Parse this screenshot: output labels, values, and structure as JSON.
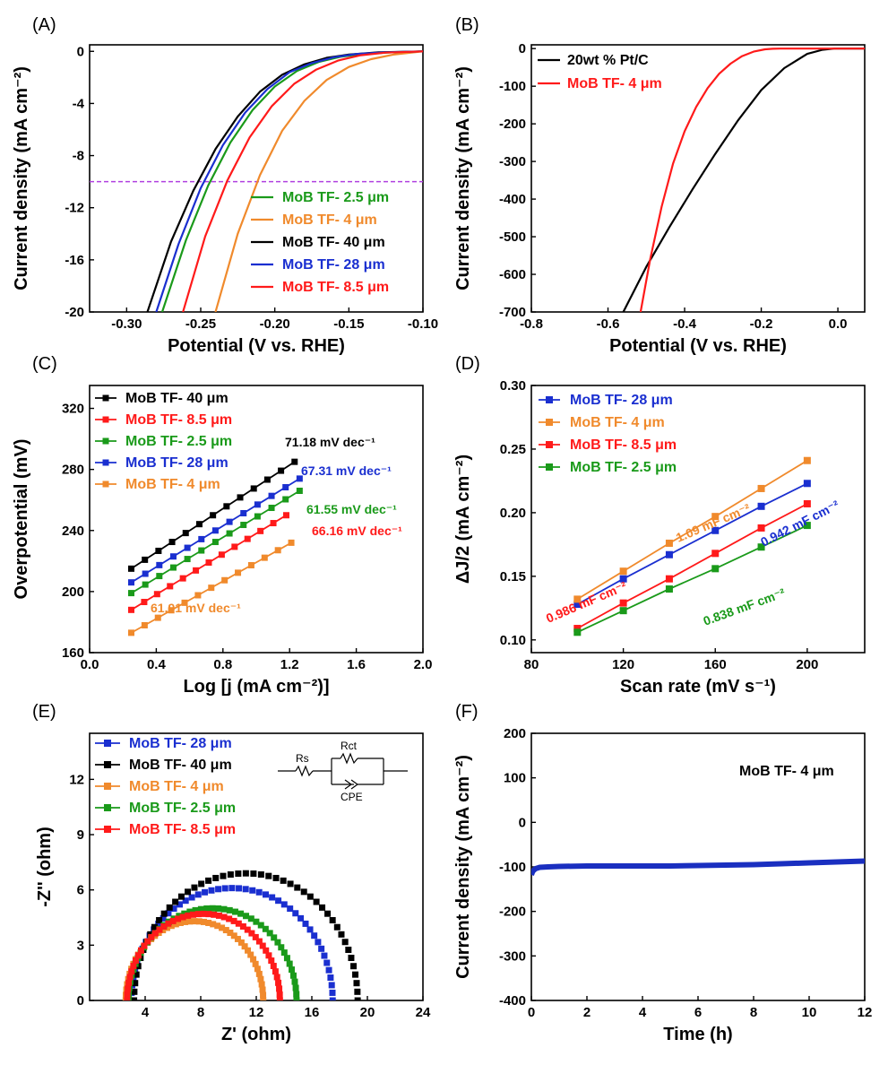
{
  "colors": {
    "black": "#000000",
    "red": "#ff1a1a",
    "green": "#1a9a1a",
    "blue": "#1a2fd0",
    "orange": "#f08a2c",
    "magenta": "#b040e0",
    "stability_blue": "#1a2fc0"
  },
  "chart_data": [
    {
      "id": "A",
      "panel_label": "(A)",
      "type": "line",
      "xlabel": "Potential (V vs. RHE)",
      "ylabel": "Current density (mA cm⁻²)",
      "xlim": [
        -0.325,
        -0.1
      ],
      "ylim": [
        -20,
        0.5
      ],
      "xticks": [
        -0.3,
        -0.25,
        -0.2,
        -0.15,
        -0.1
      ],
      "xtick_labels": [
        "-0.30",
        "-0.25",
        "-0.20",
        "-0.15",
        "-0.10"
      ],
      "yticks": [
        -20,
        -16,
        -12,
        -8,
        -4,
        0
      ],
      "ytick_labels": [
        "-20",
        "-16",
        "-12",
        "-8",
        "-4",
        "0"
      ],
      "reference_line": {
        "y": -10,
        "color": "magenta",
        "style": "dashed"
      },
      "legend_position": "bottom-right",
      "series": [
        {
          "name": "MoB TF- 2.5 μm",
          "color": "green",
          "x": [
            -0.276,
            -0.26,
            -0.245,
            -0.23,
            -0.215,
            -0.2,
            -0.185,
            -0.17,
            -0.155,
            -0.14,
            -0.12,
            -0.1
          ],
          "y": [
            -20,
            -14.5,
            -10.3,
            -7.0,
            -4.5,
            -2.7,
            -1.5,
            -0.8,
            -0.4,
            -0.2,
            -0.07,
            0
          ]
        },
        {
          "name": "MoB TF- 4 μm",
          "color": "orange",
          "x": [
            -0.24,
            -0.225,
            -0.21,
            -0.195,
            -0.18,
            -0.165,
            -0.15,
            -0.135,
            -0.12,
            -0.1
          ],
          "y": [
            -20,
            -14.0,
            -9.5,
            -6.1,
            -3.8,
            -2.2,
            -1.2,
            -0.6,
            -0.25,
            0
          ]
        },
        {
          "name": "MoB TF- 40 μm",
          "color": "black",
          "x": [
            -0.286,
            -0.27,
            -0.255,
            -0.24,
            -0.225,
            -0.21,
            -0.195,
            -0.18,
            -0.165,
            -0.15,
            -0.13,
            -0.1
          ],
          "y": [
            -20,
            -14.6,
            -10.7,
            -7.5,
            -5.0,
            -3.1,
            -1.8,
            -1.0,
            -0.5,
            -0.25,
            -0.08,
            0
          ]
        },
        {
          "name": "MoB TF- 28 μm",
          "color": "blue",
          "x": [
            -0.28,
            -0.265,
            -0.25,
            -0.235,
            -0.22,
            -0.205,
            -0.19,
            -0.175,
            -0.16,
            -0.145,
            -0.125,
            -0.1
          ],
          "y": [
            -20,
            -14.8,
            -10.5,
            -7.2,
            -4.7,
            -2.9,
            -1.6,
            -0.9,
            -0.45,
            -0.2,
            -0.07,
            0
          ]
        },
        {
          "name": "MoB TF- 8.5 μm",
          "color": "red",
          "x": [
            -0.262,
            -0.247,
            -0.232,
            -0.217,
            -0.202,
            -0.187,
            -0.172,
            -0.157,
            -0.142,
            -0.125,
            -0.1
          ],
          "y": [
            -20,
            -14.2,
            -9.9,
            -6.6,
            -4.2,
            -2.5,
            -1.4,
            -0.7,
            -0.3,
            -0.1,
            0
          ]
        }
      ]
    },
    {
      "id": "B",
      "panel_label": "(B)",
      "type": "line",
      "xlabel": "Potential (V vs. RHE)",
      "ylabel": "Current density (mA cm⁻²)",
      "xlim": [
        -0.8,
        0.07
      ],
      "ylim": [
        -700,
        10
      ],
      "xticks": [
        -0.8,
        -0.6,
        -0.4,
        -0.2,
        0.0
      ],
      "xtick_labels": [
        "-0.8",
        "-0.6",
        "-0.4",
        "-0.2",
        "0.0"
      ],
      "yticks": [
        -700,
        -600,
        -500,
        -400,
        -300,
        -200,
        -100,
        0
      ],
      "ytick_labels": [
        "-700",
        "-600",
        "-500",
        "-400",
        "-300",
        "-200",
        "-100",
        "0"
      ],
      "legend_position": "top-left",
      "series": [
        {
          "name": "20wt % Pt/C",
          "color": "black",
          "x": [
            -0.56,
            -0.5,
            -0.44,
            -0.38,
            -0.32,
            -0.26,
            -0.2,
            -0.14,
            -0.08,
            -0.04,
            -0.01,
            0.0,
            0.07
          ],
          "y": [
            -700,
            -580,
            -475,
            -375,
            -280,
            -190,
            -110,
            -52,
            -14,
            -3,
            0,
            0,
            0
          ]
        },
        {
          "name": "MoB TF- 4 μm",
          "color": "red",
          "x": [
            -0.515,
            -0.49,
            -0.46,
            -0.43,
            -0.4,
            -0.37,
            -0.34,
            -0.31,
            -0.28,
            -0.25,
            -0.22,
            -0.19,
            -0.17,
            -0.15,
            0.07
          ],
          "y": [
            -700,
            -560,
            -420,
            -305,
            -220,
            -155,
            -105,
            -67,
            -40,
            -20,
            -8,
            -2,
            -0.5,
            0,
            0
          ]
        }
      ]
    },
    {
      "id": "C",
      "panel_label": "(C)",
      "type": "line",
      "xlabel": "Log [j (mA cm⁻²)]",
      "ylabel": "Overpotential (mV)",
      "xlim": [
        0.0,
        2.0
      ],
      "ylim": [
        160,
        335
      ],
      "xticks": [
        0.0,
        0.4,
        0.8,
        1.2,
        1.6,
        2.0
      ],
      "xtick_labels": [
        "0.0",
        "0.4",
        "0.8",
        "1.2",
        "1.6",
        "2.0"
      ],
      "yticks": [
        160,
        200,
        240,
        280,
        320
      ],
      "ytick_labels": [
        "160",
        "200",
        "240",
        "280",
        "320"
      ],
      "legend_position": "top-left",
      "series": [
        {
          "name": "MoB TF- 40 μm",
          "color": "black",
          "x_start": 0.25,
          "x_end": 1.23,
          "y_start": 215,
          "y_end": 285,
          "slope_label": "71.18 mV dec⁻¹"
        },
        {
          "name": "MoB TF- 8.5 μm",
          "color": "red",
          "x_start": 0.25,
          "x_end": 1.18,
          "y_start": 188,
          "y_end": 250,
          "slope_label": "66.16 mV dec⁻¹"
        },
        {
          "name": "MoB TF- 2.5 μm",
          "color": "green",
          "x_start": 0.25,
          "x_end": 1.26,
          "y_start": 199,
          "y_end": 266,
          "slope_label": "61.55 mV dec⁻¹"
        },
        {
          "name": "MoB TF- 28 μm",
          "color": "blue",
          "x_start": 0.25,
          "x_end": 1.26,
          "y_start": 206,
          "y_end": 274,
          "slope_label": "67.31 mV dec⁻¹"
        },
        {
          "name": "MoB TF- 4 μm",
          "color": "orange",
          "x_start": 0.25,
          "x_end": 1.21,
          "y_start": 173,
          "y_end": 232,
          "slope_label": "61.91 mV dec⁻¹"
        }
      ]
    },
    {
      "id": "D",
      "panel_label": "(D)",
      "type": "line",
      "xlabel": "Scan rate (mV s⁻¹)",
      "ylabel": "ΔJ/2 (mA cm⁻²)",
      "xlim": [
        80,
        225
      ],
      "ylim": [
        0.09,
        0.3
      ],
      "xticks": [
        80,
        120,
        160,
        200
      ],
      "xtick_labels": [
        "80",
        "120",
        "160",
        "200"
      ],
      "yticks": [
        0.1,
        0.15,
        0.2,
        0.25,
        0.3
      ],
      "ytick_labels": [
        "0.10",
        "0.15",
        "0.20",
        "0.25",
        "0.30"
      ],
      "legend_position": "top-left",
      "x": [
        100,
        120,
        140,
        160,
        180,
        200
      ],
      "series": [
        {
          "name": "MoB TF- 28 μm",
          "color": "blue",
          "values": [
            0.128,
            0.148,
            0.167,
            0.186,
            0.205,
            0.223
          ],
          "slope_label": "0.942 mF cm⁻²"
        },
        {
          "name": "MoB TF- 4 μm",
          "color": "orange",
          "values": [
            0.132,
            0.154,
            0.176,
            0.197,
            0.219,
            0.241
          ],
          "slope_label": "1.09 mF cm⁻²"
        },
        {
          "name": "MoB TF- 8.5 μm",
          "color": "red",
          "values": [
            0.109,
            0.129,
            0.148,
            0.168,
            0.188,
            0.207
          ],
          "slope_label": "0.986 mF cm⁻²"
        },
        {
          "name": "MoB TF- 2.5 μm",
          "color": "green",
          "values": [
            0.106,
            0.123,
            0.14,
            0.156,
            0.173,
            0.19
          ],
          "slope_label": "0.838 mF cm⁻²"
        }
      ]
    },
    {
      "id": "E",
      "panel_label": "(E)",
      "type": "scatter",
      "xlabel": "Z' (ohm)",
      "ylabel": "-Z'' (ohm)",
      "xlim": [
        0,
        24
      ],
      "ylim": [
        0,
        14.5
      ],
      "xticks": [
        4,
        8,
        12,
        16,
        20,
        24
      ],
      "xtick_labels": [
        "4",
        "8",
        "12",
        "16",
        "20",
        "24"
      ],
      "yticks": [
        0,
        3,
        6,
        9,
        12
      ],
      "ytick_labels": [
        "0",
        "3",
        "6",
        "9",
        "12"
      ],
      "legend_position": "top-left",
      "circuit": {
        "rs": "Rs",
        "rct": "Rct",
        "cpe": "CPE"
      },
      "series": [
        {
          "name": "MoB TF- 28 μm",
          "color": "blue",
          "x_start": 3.0,
          "x_end": 17.5,
          "peak": 6.1
        },
        {
          "name": "MoB TF- 40 μm",
          "color": "black",
          "x_start": 3.2,
          "x_end": 19.3,
          "peak": 6.9
        },
        {
          "name": "MoB TF- 4 μm",
          "color": "orange",
          "x_start": 2.6,
          "x_end": 12.5,
          "peak": 4.3
        },
        {
          "name": "MoB TF- 2.5 μm",
          "color": "green",
          "x_start": 2.8,
          "x_end": 14.9,
          "peak": 5.0
        },
        {
          "name": "MoB TF- 8.5 μm",
          "color": "red",
          "x_start": 2.7,
          "x_end": 13.7,
          "peak": 4.7
        }
      ]
    },
    {
      "id": "F",
      "panel_label": "(F)",
      "type": "line",
      "xlabel": "Time (h)",
      "ylabel": "Current density (mA cm⁻²)",
      "xlim": [
        0,
        12
      ],
      "ylim": [
        -400,
        200
      ],
      "xticks": [
        0,
        2,
        4,
        6,
        8,
        10,
        12
      ],
      "xtick_labels": [
        "0",
        "2",
        "4",
        "6",
        "8",
        "10",
        "12"
      ],
      "yticks": [
        -400,
        -300,
        -200,
        -100,
        0,
        100,
        200
      ],
      "ytick_labels": [
        "-400",
        "-300",
        "-200",
        "-100",
        "0",
        "100",
        "200"
      ],
      "annotation": "MoB TF- 4 μm",
      "series": [
        {
          "name": "MoB TF- 4 μm",
          "color": "stability_blue",
          "x": [
            0,
            0.05,
            0.15,
            0.3,
            0.6,
            1,
            2,
            3,
            4,
            5,
            6,
            7,
            8,
            9,
            10,
            11,
            12
          ],
          "y": [
            -118,
            -110,
            -104,
            -101,
            -100,
            -99,
            -98,
            -98,
            -98,
            -98,
            -97,
            -96,
            -95,
            -93,
            -91,
            -89,
            -87
          ]
        }
      ]
    }
  ]
}
